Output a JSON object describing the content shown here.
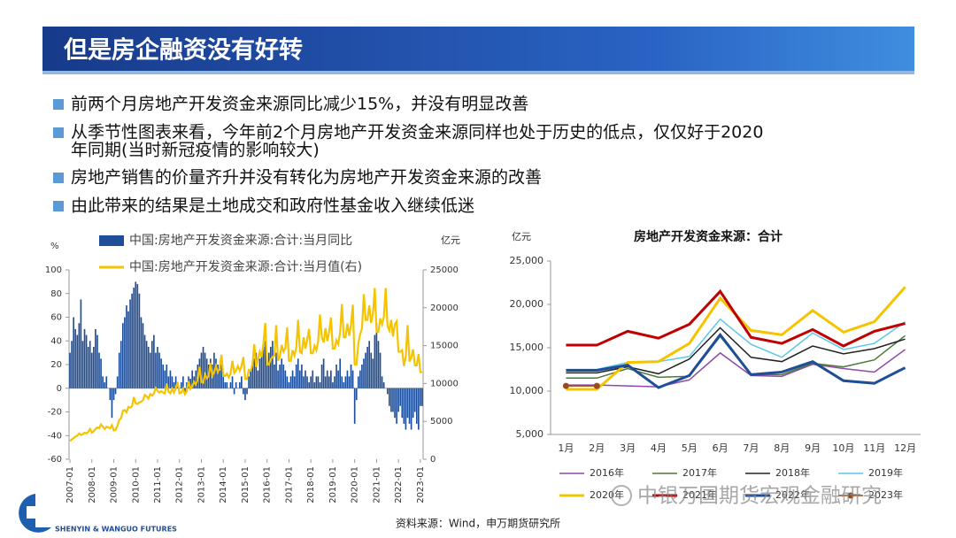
{
  "header": {
    "title": "但是房企融资没有好转"
  },
  "bullets": [
    [
      "前两个月房地产开发资金来源同比减少15%，并没有明显改善"
    ],
    [
      "从季节性图表来看，今年前2个月房地产开发资金来源同样也处于历史的低点，仅仅好于2020",
      "年同期(当时新冠疫情的影响较大)"
    ],
    [
      "房地产销售的价量齐升并没有转化为房地产开发资金来源的改善"
    ],
    [
      "由此带来的结果是土地成交和政府性基金收入继续低迷"
    ]
  ],
  "source": "资料来源：Wind，申万期货研究所",
  "logo": "SHENYIN & WANGUO FUTURES",
  "watermark": "中银万国期货宏观金融研究",
  "chart_data": [
    {
      "type": "bar",
      "ylabel": "%",
      "y2label": "亿元",
      "ylim": [
        -60,
        100
      ],
      "yticks": [
        -60,
        -40,
        -20,
        0,
        20,
        40,
        60,
        80,
        100
      ],
      "y2lim": [
        0,
        25000
      ],
      "y2ticks": [
        0,
        5000,
        10000,
        15000,
        20000,
        25000
      ],
      "categories": [
        "2007-01",
        null,
        null,
        null,
        null,
        null,
        null,
        null,
        null,
        null,
        null,
        null,
        "2008-01",
        null,
        null,
        null,
        null,
        null,
        null,
        null,
        null,
        null,
        null,
        null,
        "2009-01",
        null,
        null,
        null,
        null,
        null,
        null,
        null,
        null,
        null,
        null,
        null,
        "2010-01",
        null,
        null,
        null,
        null,
        null,
        null,
        null,
        null,
        null,
        null,
        null,
        "2011-01",
        null,
        null,
        null,
        null,
        null,
        null,
        null,
        null,
        null,
        null,
        null,
        "2012-01",
        null,
        null,
        null,
        null,
        null,
        null,
        null,
        null,
        null,
        null,
        null,
        "2013-01",
        null,
        null,
        null,
        null,
        null,
        null,
        null,
        null,
        null,
        null,
        null,
        "2014-01",
        null,
        null,
        null,
        null,
        null,
        null,
        null,
        null,
        null,
        null,
        null,
        "2015-01",
        null,
        null,
        null,
        null,
        null,
        null,
        null,
        null,
        null,
        null,
        null,
        "2016-01",
        null,
        null,
        null,
        null,
        null,
        null,
        null,
        null,
        null,
        null,
        null,
        "2017-01",
        null,
        null,
        null,
        null,
        null,
        null,
        null,
        null,
        null,
        null,
        null,
        "2018-01",
        null,
        null,
        null,
        null,
        null,
        null,
        null,
        null,
        null,
        null,
        null,
        "2019-01",
        null,
        null,
        null,
        null,
        null,
        null,
        null,
        null,
        null,
        null,
        null,
        "2020-01",
        null,
        null,
        null,
        null,
        null,
        null,
        null,
        null,
        null,
        null,
        null,
        "2021-01",
        null,
        null,
        null,
        null,
        null,
        null,
        null,
        null,
        null,
        null,
        null,
        "2022-01",
        null,
        null,
        null,
        null,
        null,
        null,
        null,
        null,
        null,
        null,
        null,
        "2023-01",
        null
      ],
      "series": [
        {
          "name": "中国:房地产开发资金来源:合计:当月同比",
          "type": "bar",
          "color": "#1f4e99",
          "values": [
            30,
            40,
            60,
            50,
            45,
            55,
            75,
            40,
            50,
            45,
            35,
            40,
            30,
            35,
            50,
            45,
            30,
            25,
            10,
            5,
            10,
            0,
            -10,
            -25,
            -10,
            -5,
            10,
            30,
            40,
            55,
            60,
            70,
            65,
            75,
            80,
            85,
            90,
            88,
            80,
            60,
            55,
            45,
            40,
            35,
            30,
            40,
            45,
            30,
            35,
            30,
            25,
            20,
            15,
            20,
            10,
            15,
            10,
            5,
            10,
            5,
            0,
            5,
            10,
            -5,
            5,
            10,
            8,
            15,
            10,
            15,
            20,
            25,
            30,
            35,
            30,
            25,
            20,
            25,
            20,
            30,
            25,
            20,
            15,
            20,
            10,
            5,
            5,
            0,
            5,
            10,
            -5,
            5,
            0,
            5,
            10,
            -5,
            -10,
            -5,
            10,
            15,
            20,
            25,
            30,
            15,
            25,
            30,
            35,
            40,
            20,
            30,
            35,
            40,
            20,
            30,
            15,
            20,
            25,
            20,
            15,
            10,
            5,
            10,
            15,
            10,
            20,
            25,
            15,
            20,
            10,
            15,
            10,
            5,
            10,
            15,
            5,
            10,
            10,
            5,
            20,
            25,
            10,
            15,
            10,
            15,
            5,
            10,
            20,
            15,
            25,
            10,
            5,
            10,
            15,
            10,
            20,
            15,
            -30,
            -10,
            10,
            15,
            20,
            25,
            30,
            35,
            40,
            30,
            25,
            45,
            55,
            40,
            30,
            10,
            5,
            0,
            -5,
            -15,
            -20,
            -20,
            -25,
            -30,
            -20,
            -15,
            -25,
            -30,
            -35,
            -25,
            -30,
            -35,
            -25,
            -20,
            -30,
            -35,
            -15,
            -15
          ]
        },
        {
          "name": "中国:房地产开发资金来源:合计:当月值(右)",
          "type": "line",
          "axis": "y2",
          "color": "#f5c400",
          "values": [
            2400,
            2600,
            2800,
            3000,
            3100,
            3400,
            3200,
            3300,
            3500,
            3400,
            3600,
            4000,
            3500,
            3700,
            4000,
            4200,
            4100,
            4600,
            4300,
            4000,
            4300,
            4200,
            4100,
            4500,
            3800,
            3900,
            4400,
            5200,
            5400,
            6400,
            6500,
            6200,
            6900,
            6800,
            7000,
            8200,
            7400,
            7300,
            7500,
            7600,
            7800,
            8500,
            8300,
            8000,
            8600,
            8400,
            8700,
            9400,
            9000,
            8800,
            9000,
            8800,
            8700,
            10000,
            8900,
            8700,
            9300,
            8800,
            9400,
            10200,
            8700,
            8800,
            9300,
            8600,
            9000,
            10300,
            9300,
            9600,
            10200,
            9900,
            10500,
            12200,
            10200,
            10100,
            11200,
            10700,
            11000,
            12700,
            11000,
            11500,
            12300,
            11500,
            12000,
            13800,
            11000,
            11000,
            11300,
            10800,
            11300,
            13000,
            11400,
            11700,
            12300,
            11700,
            12300,
            13500,
            10600,
            10600,
            11800,
            11700,
            12500,
            15200,
            12200,
            13200,
            14200,
            13500,
            15300,
            18000,
            12500,
            12500,
            13200,
            13500,
            13700,
            17700,
            13000,
            13500,
            15100,
            14200,
            14700,
            17400,
            13000,
            13000,
            14400,
            13700,
            14700,
            18400,
            14200,
            14000,
            16100,
            14600,
            15800,
            17200,
            14000,
            14000,
            15000,
            14400,
            15600,
            19100,
            16100,
            15400,
            17300,
            15600,
            16800,
            18700,
            14600,
            14600,
            15700,
            15200,
            16700,
            20500,
            16100,
            16100,
            17900,
            16300,
            17800,
            20400,
            12500,
            12500,
            15300,
            16500,
            17300,
            21800,
            18400,
            18400,
            20300,
            18000,
            19200,
            22600,
            16800,
            16800,
            18600,
            17800,
            18800,
            22600,
            17600,
            17000,
            18400,
            16200,
            17800,
            18200,
            14200,
            14200,
            14400,
            12300,
            13600,
            17700,
            12900,
            13400,
            14500,
            12400,
            12400,
            13900,
            11500,
            11500
          ]
        }
      ]
    },
    {
      "type": "line",
      "title": "房地产开发资金来源：合计",
      "ylabel": "亿元",
      "categories": [
        "1月",
        "2月",
        "3月",
        "4月",
        "5月",
        "6月",
        "7月",
        "8月",
        "9月",
        "10月",
        "11月",
        "12月"
      ],
      "ylim": [
        5000,
        25000
      ],
      "yticks": [
        {
          "value": 5000,
          "label": "5,000"
        },
        {
          "value": 10000,
          "label": "10,000"
        },
        {
          "value": 15000,
          "label": "15,000"
        },
        {
          "value": 20000,
          "label": "20,000"
        },
        {
          "value": 25000,
          "label": "25,000"
        }
      ],
      "series": [
        {
          "name": "2016年",
          "color": "#8e4aa8",
          "values": [
            10700,
            10700,
            10600,
            10500,
            11300,
            14400,
            11800,
            11700,
            13100,
            12600,
            12200,
            14800
          ]
        },
        {
          "name": "2017年",
          "color": "#4a7a3a",
          "values": [
            11500,
            11500,
            12600,
            11600,
            11700,
            16300,
            11900,
            11900,
            13200,
            12800,
            13600,
            16400
          ]
        },
        {
          "name": "2018年",
          "color": "#222222",
          "values": [
            12100,
            12100,
            12800,
            12000,
            13700,
            17300,
            13900,
            13400,
            15200,
            14300,
            14900,
            16000
          ]
        },
        {
          "name": "2019年",
          "color": "#5bc8e8",
          "values": [
            12500,
            12500,
            13300,
            13400,
            14000,
            18300,
            15400,
            13900,
            16700,
            14800,
            15500,
            18000
          ]
        },
        {
          "name": "2020年",
          "color": "#f5c400",
          "values": [
            10200,
            10200,
            13300,
            13400,
            15500,
            20700,
            17000,
            16500,
            19300,
            16800,
            18000,
            22000
          ]
        },
        {
          "name": "2021年",
          "color": "#c00000",
          "values": [
            15300,
            15300,
            16900,
            16100,
            17700,
            21500,
            16200,
            15500,
            17100,
            15200,
            16900,
            17800
          ]
        },
        {
          "name": "2022年",
          "color": "#1f4e99",
          "values": [
            12400,
            12400,
            13000,
            10400,
            11800,
            16500,
            11900,
            12200,
            13400,
            11200,
            10900,
            12700
          ]
        },
        {
          "name": "2023年",
          "color": "#9c4a1a",
          "marker": true,
          "values": [
            10600,
            10600,
            null,
            null,
            null,
            null,
            null,
            null,
            null,
            null,
            null,
            null
          ]
        }
      ]
    }
  ]
}
